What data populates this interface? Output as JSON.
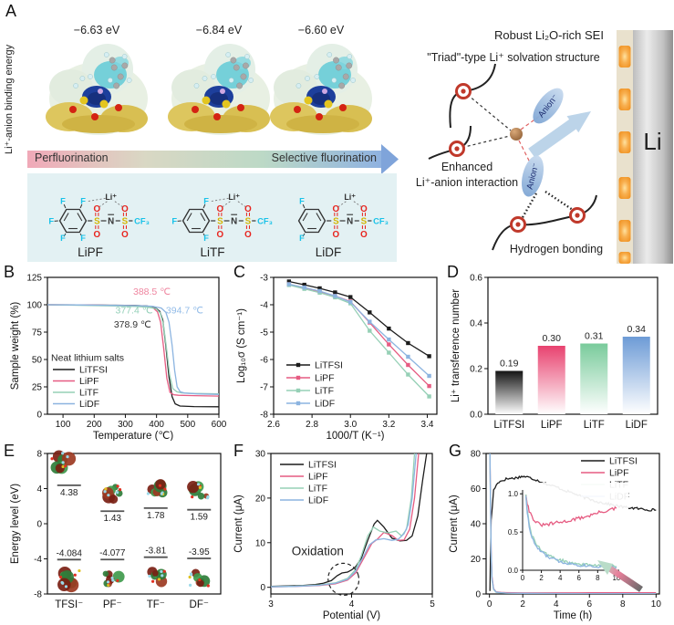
{
  "panel_labels": {
    "a": "A",
    "b": "B",
    "c": "C",
    "d": "D",
    "e": "E",
    "f": "F",
    "g": "G"
  },
  "panel_a": {
    "axis_label": "Li⁺-anion binding energy",
    "binding_energies": [
      "−6.63 eV",
      "−6.84 eV",
      "−6.60 eV"
    ],
    "arrow_left": "Perfluorination",
    "arrow_right": "Selective fluorination",
    "molecules": [
      "LiPF",
      "LiTF",
      "LiDF"
    ],
    "li_ion": "Li⁺",
    "atoms": {
      "f": "F",
      "s": "S",
      "n": "N",
      "o": "O",
      "cf3": "CF₃"
    },
    "robust_sei": "Robust Li₂O-rich SEI",
    "triad": "\"Triad\"-type Li⁺ solvation structure",
    "enhanced_line1": "Enhanced",
    "enhanced_line2": "Li⁺-anion interaction",
    "hydrogen": "Hydrogen bonding",
    "anion": "Anion⁻",
    "electrode": "Li",
    "arrow_colors": [
      "#f0a9b8",
      "#d9d8c4",
      "#bcd9c6",
      "#8fb2e0"
    ],
    "box_color": "#e3f1f3"
  },
  "salt_colors": {
    "LiTFSI": "#1c1c1c",
    "LiPF": "#e65c82",
    "LiTF": "#96d0b6",
    "LiDF": "#8cb4e0"
  },
  "chart_data": [
    {
      "id": "b",
      "type": "line",
      "xlabel": "Temperature (℃)",
      "ylabel": "Sample weight (%)",
      "xlim": [
        50,
        600
      ],
      "ylim": [
        0,
        125
      ],
      "xticks": [
        100,
        200,
        300,
        400,
        500,
        600
      ],
      "xtick_labels": [
        "100",
        "200",
        "300",
        "400",
        "500",
        "600"
      ],
      "yticks": [
        0,
        25,
        50,
        75,
        100,
        125
      ],
      "ytick_labels": [
        "0",
        "25",
        "50",
        "75",
        "100",
        "125"
      ],
      "legend_title": "Neat lithium salts",
      "series": [
        {
          "name": "LiTFSI",
          "color": "#1c1c1c",
          "x": [
            50,
            150,
            250,
            330,
            370,
            395,
            410,
            420,
            430,
            440,
            450,
            460,
            475,
            520,
            600
          ],
          "y": [
            100,
            99.8,
            99.6,
            99.3,
            98.8,
            97.5,
            94,
            86,
            62,
            34,
            16,
            9.5,
            7.5,
            7,
            6.8
          ]
        },
        {
          "name": "LiPF",
          "color": "#e65c82",
          "x": [
            50,
            150,
            250,
            330,
            365,
            390,
            403,
            413,
            423,
            433,
            443,
            455,
            470,
            520,
            600
          ],
          "y": [
            100,
            99.8,
            99.5,
            99.2,
            98.6,
            97,
            93.5,
            84,
            60,
            33,
            20,
            17.8,
            17.3,
            17,
            16.6
          ]
        },
        {
          "name": "LiTF",
          "color": "#96d0b6",
          "x": [
            50,
            150,
            250,
            330,
            370,
            398,
            412,
            422,
            432,
            442,
            452,
            465,
            480,
            520,
            600
          ],
          "y": [
            100,
            99.5,
            99,
            98.5,
            97.8,
            96.5,
            92.5,
            82,
            60,
            36,
            23.5,
            20.5,
            19.5,
            19,
            18.7
          ]
        },
        {
          "name": "LiDF",
          "color": "#8cb4e0",
          "x": [
            50,
            150,
            250,
            340,
            385,
            415,
            430,
            440,
            450,
            458,
            466,
            476,
            490,
            530,
            600
          ],
          "y": [
            100,
            99.8,
            99.5,
            99.2,
            98.6,
            97,
            93,
            84,
            63,
            40,
            25,
            20.5,
            19.3,
            18.6,
            18.1
          ]
        }
      ],
      "annotations": [
        {
          "text": "388.5 ℃",
          "color": "#ef86a0",
          "x": 385,
          "y": 109
        },
        {
          "text": "377.4 ℃",
          "color": "#93d0b8",
          "x": 328,
          "y": 92
        },
        {
          "text": "378.9 ℃",
          "color": "#333333",
          "x": 323,
          "y": 79
        },
        {
          "text": "394.7 ℃",
          "color": "#93bce8",
          "x": 490,
          "y": 92
        }
      ]
    },
    {
      "id": "c",
      "type": "line",
      "marker": "square",
      "xlabel": "1000/T (K⁻¹)",
      "ylabel": "Log₁₀σ (S cm⁻¹)",
      "xlim": [
        2.6,
        3.45
      ],
      "ylim": [
        -8,
        -3
      ],
      "xticks": [
        2.6,
        2.8,
        3.0,
        3.2,
        3.4
      ],
      "xtick_labels": [
        "2.6",
        "2.8",
        "3.0",
        "3.2",
        "3.4"
      ],
      "yticks": [
        -8,
        -7,
        -6,
        -5,
        -4,
        -3
      ],
      "ytick_labels": [
        "-8",
        "-7",
        "-6",
        "-5",
        "-4",
        "-3"
      ],
      "series": [
        {
          "name": "LiTFSI",
          "color": "#1c1c1c",
          "x": [
            2.68,
            2.76,
            2.84,
            2.92,
            3.0,
            3.1,
            3.2,
            3.3,
            3.41
          ],
          "y": [
            -3.15,
            -3.27,
            -3.4,
            -3.55,
            -3.72,
            -4.28,
            -4.87,
            -5.4,
            -5.88
          ]
        },
        {
          "name": "LiPF",
          "color": "#e65c82",
          "x": [
            2.68,
            2.76,
            2.84,
            2.92,
            3.0,
            3.1,
            3.2,
            3.3,
            3.41
          ],
          "y": [
            -3.25,
            -3.38,
            -3.52,
            -3.68,
            -3.88,
            -4.65,
            -5.45,
            -6.2,
            -6.97
          ]
        },
        {
          "name": "LiTF",
          "color": "#96d0b6",
          "x": [
            2.68,
            2.76,
            2.84,
            2.92,
            3.0,
            3.1,
            3.2,
            3.3,
            3.41
          ],
          "y": [
            -3.28,
            -3.42,
            -3.56,
            -3.73,
            -3.95,
            -4.95,
            -5.75,
            -6.55,
            -7.35
          ]
        },
        {
          "name": "LiDF",
          "color": "#8cb4e0",
          "x": [
            2.68,
            2.76,
            2.84,
            2.92,
            3.0,
            3.1,
            3.2,
            3.3,
            3.41
          ],
          "y": [
            -3.25,
            -3.37,
            -3.5,
            -3.68,
            -3.9,
            -4.62,
            -5.27,
            -5.9,
            -6.6
          ]
        }
      ]
    },
    {
      "id": "d",
      "type": "bar",
      "ylabel": "Li⁺ transference number",
      "ylim": [
        0,
        0.6
      ],
      "yticks": [
        0,
        0.2,
        0.4,
        0.6
      ],
      "ytick_labels": [
        "0.0",
        "0.2",
        "0.4",
        "0.6"
      ],
      "categories": [
        "LiTFSI",
        "LiPF",
        "LiTF",
        "LiDF"
      ],
      "values": [
        0.19,
        0.3,
        0.31,
        0.34
      ],
      "value_labels": [
        "0.19",
        "0.30",
        "0.31",
        "0.34"
      ],
      "bar_colors": [
        "#141414",
        "#e8426f",
        "#79cb9b",
        "#6d9bd6"
      ]
    },
    {
      "id": "e",
      "type": "energy-levels",
      "ylabel": "Energy level (eV)",
      "ylim": [
        -8,
        8
      ],
      "yticks": [
        -8,
        -4,
        0,
        4,
        8
      ],
      "ytick_labels": [
        "-8",
        "-4",
        "0",
        "4",
        "8"
      ],
      "categories": [
        "TFSI⁻",
        "PF⁻",
        "TF⁻",
        "DF⁻"
      ],
      "lumo": [
        4.38,
        1.43,
        1.78,
        1.59
      ],
      "lumo_labels": [
        "4.38",
        "1.43",
        "1.78",
        "1.59"
      ],
      "homo": [
        -4.084,
        -4.077,
        -3.81,
        -3.95
      ],
      "homo_labels": [
        "-4.084",
        "-4.077",
        "-3.81",
        "-3.95"
      ]
    },
    {
      "id": "f",
      "type": "line",
      "xlabel": "Potential (V)",
      "ylabel": "Current (μA)",
      "xlim": [
        3,
        5
      ],
      "ylim": [
        -1.5,
        30
      ],
      "xticks": [
        3,
        4,
        5
      ],
      "xtick_labels": [
        "3",
        "4",
        "5"
      ],
      "yticks": [
        0,
        10,
        20,
        30
      ],
      "ytick_labels": [
        "0",
        "10",
        "20",
        "30"
      ],
      "annotation": {
        "text": "Oxidation",
        "x": 3.58,
        "y": 7.2
      },
      "ellipse": {
        "cx": 3.9,
        "cy": 1.8,
        "rx": 0.19,
        "ry": 3.6
      },
      "series": [
        {
          "name": "LiTFSI",
          "color": "#1c1c1c",
          "x": [
            3,
            3.2,
            3.4,
            3.55,
            3.65,
            3.75,
            3.82,
            3.88,
            3.95,
            4.0,
            4.05,
            4.12,
            4.2,
            4.28,
            4.32,
            4.4,
            4.5,
            4.6,
            4.68,
            4.75,
            4.82,
            4.88,
            4.93
          ],
          "y": [
            0.2,
            0.3,
            0.4,
            0.6,
            0.9,
            1.5,
            2.6,
            3.2,
            3.4,
            3.9,
            4.6,
            6.5,
            10.5,
            14.2,
            15,
            13.5,
            11,
            10.4,
            10.5,
            11.5,
            16,
            24,
            30
          ]
        },
        {
          "name": "LiPF",
          "color": "#e65c82",
          "x": [
            3,
            3.3,
            3.6,
            3.8,
            3.95,
            4.05,
            4.15,
            4.25,
            4.32,
            4.4,
            4.5,
            4.58,
            4.65,
            4.72,
            4.78,
            4.83
          ],
          "y": [
            0.1,
            0.2,
            0.4,
            0.8,
            1.6,
            3.2,
            6.5,
            9.8,
            10.8,
            12.3,
            11.6,
            10.5,
            10.6,
            13,
            20,
            30
          ]
        },
        {
          "name": "LiTF",
          "color": "#96d0b6",
          "x": [
            3,
            3.3,
            3.6,
            3.8,
            3.95,
            4.05,
            4.12,
            4.2,
            4.27,
            4.35,
            4.45,
            4.55,
            4.62,
            4.68,
            4.74,
            4.78
          ],
          "y": [
            0.15,
            0.25,
            0.5,
            1.0,
            2.0,
            4.0,
            7.0,
            11.5,
            13.5,
            12.6,
            12.2,
            12.6,
            11.5,
            13,
            20,
            30
          ]
        },
        {
          "name": "LiDF",
          "color": "#8cb4e0",
          "x": [
            3,
            3.3,
            3.6,
            3.8,
            3.95,
            4.05,
            4.15,
            4.22,
            4.3,
            4.4,
            4.5,
            4.58,
            4.65,
            4.7,
            4.75,
            4.8
          ],
          "y": [
            0.1,
            0.2,
            0.45,
            0.9,
            1.8,
            3.6,
            7.0,
            9.5,
            10.6,
            10.9,
            10.5,
            10.8,
            12,
            14,
            20,
            30
          ]
        }
      ]
    },
    {
      "id": "g",
      "type": "line",
      "xlabel": "Time (h)",
      "ylabel": "Current (μA)",
      "xlim": [
        -0.2,
        10.2
      ],
      "ylim": [
        0,
        80
      ],
      "xticks": [
        0,
        2,
        4,
        6,
        8,
        10
      ],
      "xtick_labels": [
        "0",
        "2",
        "4",
        "6",
        "8",
        "10"
      ],
      "yticks": [
        0,
        20,
        40,
        60,
        80
      ],
      "ytick_labels": [
        "0",
        "20",
        "40",
        "60",
        "80"
      ],
      "series": [
        {
          "name": "LiTFSI",
          "color": "#1c1c1c",
          "noise": 0.7,
          "x": [
            0.03,
            0.1,
            0.25,
            0.5,
            1.0,
            1.5,
            2.0,
            2.3,
            2.8,
            3.2,
            3.6,
            4.0,
            4.5,
            5.0,
            5.5,
            6.0,
            6.5,
            7.0,
            7.5,
            8.0,
            8.5,
            9.0,
            9.5,
            10
          ],
          "y": [
            2,
            42,
            59,
            63.5,
            65.5,
            66,
            67,
            66.5,
            65,
            63.5,
            62,
            61,
            59,
            57.5,
            55.5,
            54,
            52.5,
            51.5,
            50.5,
            49.5,
            49,
            48.5,
            48,
            47.8
          ]
        },
        {
          "name": "LiPF",
          "color": "#e65c82",
          "x": [
            0.03,
            0.06,
            0.1,
            0.15,
            0.25,
            0.4,
            0.7,
            1,
            2,
            4,
            6,
            8,
            10
          ],
          "y": [
            80,
            55,
            25,
            10,
            3,
            1.2,
            0.9,
            0.8,
            0.6,
            0.6,
            0.65,
            0.7,
            0.75
          ]
        },
        {
          "name": "LiTF",
          "color": "#96d0b6",
          "x": [
            0.03,
            0.06,
            0.1,
            0.15,
            0.25,
            0.4,
            0.7,
            1,
            2,
            4,
            6,
            8,
            10
          ],
          "y": [
            80,
            50,
            22,
            8,
            2.5,
            1.0,
            0.6,
            0.45,
            0.3,
            0.2,
            0.15,
            0.12,
            0.1
          ]
        },
        {
          "name": "LiDF",
          "color": "#8cb4e0",
          "x": [
            0.03,
            0.06,
            0.1,
            0.15,
            0.25,
            0.4,
            0.7,
            1,
            2,
            4,
            6,
            8,
            10
          ],
          "y": [
            80,
            52,
            24,
            9,
            2.8,
            1.1,
            0.7,
            0.5,
            0.35,
            0.25,
            0.18,
            0.14,
            0.12
          ]
        }
      ],
      "inset": {
        "xlim": [
          0,
          10.3
        ],
        "ylim": [
          0,
          1.05
        ],
        "xticks": [
          0,
          2,
          4,
          6,
          8,
          10
        ],
        "xtick_labels": [
          "0",
          "2",
          "4",
          "6",
          "8",
          "10"
        ],
        "yticks": [
          0,
          0.5,
          1.0
        ],
        "ytick_labels": [
          "0.0",
          "0.5",
          "1.0"
        ],
        "series": [
          {
            "name": "LiPF",
            "color": "#e65c82",
            "noise": 0.022,
            "x": [
              0.35,
              0.5,
              0.7,
              1.0,
              1.4,
              1.8,
              2.2,
              2.8,
              3.5,
              4.2,
              5.0,
              6.0,
              7.0,
              8.0,
              9.0,
              10
            ],
            "y": [
              1.0,
              0.88,
              0.78,
              0.7,
              0.63,
              0.6,
              0.59,
              0.6,
              0.62,
              0.63,
              0.65,
              0.68,
              0.71,
              0.75,
              0.78,
              0.81
            ]
          },
          {
            "name": "LiTF",
            "color": "#96d0b6",
            "noise": 0.022,
            "x": [
              0.35,
              0.5,
              0.7,
              1.0,
              1.5,
              2.0,
              2.5,
              3.0,
              4.0,
              5.0,
              6.0,
              7.0,
              8.0,
              9.0,
              10
            ],
            "y": [
              1.0,
              0.78,
              0.6,
              0.45,
              0.33,
              0.26,
              0.21,
              0.18,
              0.13,
              0.1,
              0.08,
              0.07,
              0.06,
              0.06,
              0.05
            ]
          },
          {
            "name": "LiDF",
            "color": "#8cb4e0",
            "noise": 0.02,
            "x": [
              0.35,
              0.5,
              0.7,
              1.0,
              1.5,
              2.0,
              2.5,
              3.0,
              4.0,
              5.0,
              6.0,
              7.0,
              8.0,
              9.0,
              10
            ],
            "y": [
              0.98,
              0.75,
              0.57,
              0.42,
              0.3,
              0.24,
              0.19,
              0.16,
              0.11,
              0.09,
              0.07,
              0.06,
              0.05,
              0.05,
              0.04
            ]
          }
        ]
      }
    }
  ]
}
